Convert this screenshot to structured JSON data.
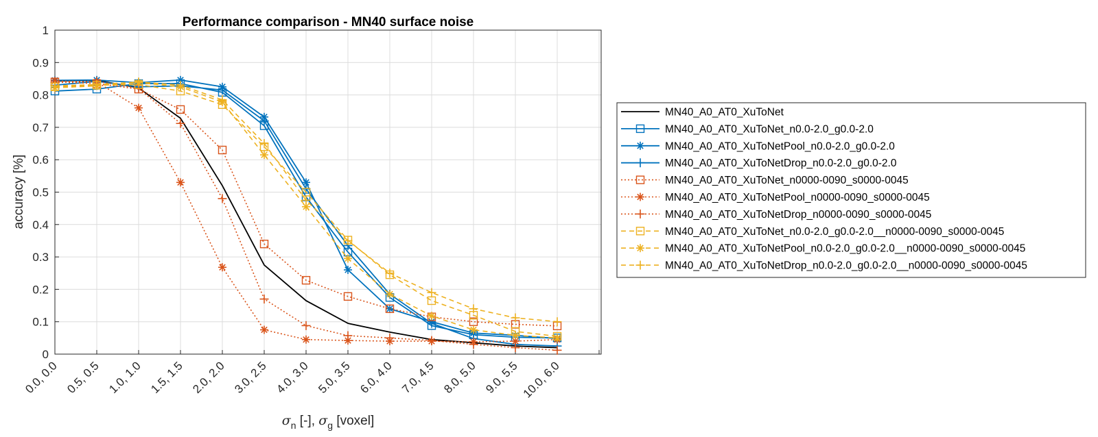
{
  "chart_data": {
    "type": "line",
    "title": "Performance comparison - MN40 surface noise",
    "xlabel": {
      "sigma1": "σ",
      "sub1": "n",
      "mid": " [-], ",
      "sigma2": "σ",
      "sub2": "g",
      "end": " [voxel]"
    },
    "ylabel": "accuracy [%]",
    "ylim": [
      0,
      1
    ],
    "yticks": [
      "0",
      "0.1",
      "0.2",
      "0.3",
      "0.4",
      "0.5",
      "0.6",
      "0.7",
      "0.8",
      "0.9",
      "1"
    ],
    "categories": [
      "0.0, 0.0",
      "0.5, 0.5",
      "1.0, 1.0",
      "1.5, 1.5",
      "2.0, 2.0",
      "3.0, 2.5",
      "4.0, 3.0",
      "5.0, 3.5",
      "6.0, 4.0",
      "7.0, 4.5",
      "8.0, 5.0",
      "9.0, 5.5",
      "10.0, 6.0"
    ],
    "grid": true,
    "legend_position": "outside-right",
    "series": [
      {
        "name": "MN40_A0_AT0_XuToNet",
        "color": "#000000",
        "dash": "solid",
        "marker": "none",
        "values": [
          0.843,
          0.845,
          0.822,
          0.728,
          0.52,
          0.275,
          0.165,
          0.095,
          0.068,
          0.045,
          0.035,
          0.025,
          0.02
        ]
      },
      {
        "name": "MN40_A0_AT0_XuToNet_n0.0-2.0_g0.0-2.0",
        "color": "#0072BD",
        "dash": "solid",
        "marker": "square",
        "values": [
          0.812,
          0.818,
          0.835,
          0.835,
          0.808,
          0.705,
          0.485,
          0.315,
          0.175,
          0.088,
          0.06,
          0.052,
          0.05
        ]
      },
      {
        "name": "MN40_A0_AT0_XuToNetPool_n0.0-2.0_g0.0-2.0",
        "color": "#0072BD",
        "dash": "solid",
        "marker": "asterisk",
        "values": [
          0.845,
          0.846,
          0.838,
          0.846,
          0.825,
          0.732,
          0.53,
          0.26,
          0.14,
          0.1,
          0.065,
          0.058,
          0.048
        ]
      },
      {
        "name": "MN40_A0_AT0_XuToNetDrop_n0.0-2.0_g0.0-2.0",
        "color": "#0072BD",
        "dash": "solid",
        "marker": "plus",
        "values": [
          0.83,
          0.842,
          0.825,
          0.828,
          0.815,
          0.72,
          0.51,
          0.335,
          0.185,
          0.095,
          0.048,
          0.03,
          0.025
        ]
      },
      {
        "name": "MN40_A0_AT0_XuToNet_n0000-0090_s0000-0045",
        "color": "#D95319",
        "dash": "dotted",
        "marker": "square",
        "values": [
          0.84,
          0.835,
          0.818,
          0.755,
          0.63,
          0.34,
          0.228,
          0.178,
          0.14,
          0.115,
          0.1,
          0.092,
          0.087
        ]
      },
      {
        "name": "MN40_A0_AT0_XuToNetPool_n0000-0090_s0000-0045",
        "color": "#D95319",
        "dash": "dotted",
        "marker": "asterisk",
        "values": [
          0.843,
          0.84,
          0.76,
          0.53,
          0.268,
          0.075,
          0.045,
          0.042,
          0.04,
          0.04,
          0.038,
          0.04,
          0.045
        ]
      },
      {
        "name": "MN40_A0_AT0_XuToNetDrop_n0000-0090_s0000-0045",
        "color": "#D95319",
        "dash": "dotted",
        "marker": "plus",
        "values": [
          0.838,
          0.842,
          0.82,
          0.712,
          0.48,
          0.17,
          0.088,
          0.057,
          0.05,
          0.042,
          0.03,
          0.02,
          0.012
        ]
      },
      {
        "name": "MN40_A0_AT0_XuToNet_n0.0-2.0_g0.0-2.0__n0000-0090_s0000-0045",
        "color": "#EDB120",
        "dash": "dashed",
        "marker": "square",
        "values": [
          0.825,
          0.83,
          0.832,
          0.812,
          0.77,
          0.64,
          0.5,
          0.352,
          0.245,
          0.165,
          0.12,
          0.07,
          0.055
        ]
      },
      {
        "name": "MN40_A0_AT0_XuToNetPool_n0.0-2.0_g0.0-2.0__n0000-0090_s0000-0045",
        "color": "#EDB120",
        "dash": "dashed",
        "marker": "asterisk",
        "values": [
          0.822,
          0.828,
          0.838,
          0.825,
          0.778,
          0.615,
          0.455,
          0.295,
          0.185,
          0.118,
          0.075,
          0.058,
          0.05
        ]
      },
      {
        "name": "MN40_A0_AT0_XuToNetDrop_n0.0-2.0_g0.0-2.0__n0000-0090_s0000-0045",
        "color": "#EDB120",
        "dash": "dashed",
        "marker": "plus",
        "values": [
          0.828,
          0.832,
          0.84,
          0.83,
          0.785,
          0.65,
          0.475,
          0.35,
          0.25,
          0.19,
          0.14,
          0.112,
          0.1
        ]
      }
    ]
  }
}
